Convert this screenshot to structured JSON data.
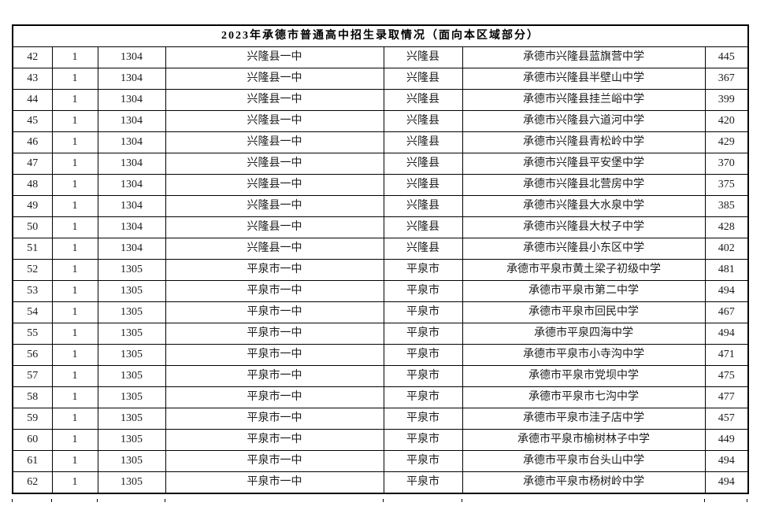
{
  "title": "2023年承德市普通高中招生录取情况（面向本区域部分）",
  "table": {
    "rows": [
      {
        "no": "42",
        "batch": "1",
        "code": "1304",
        "school": "兴隆县一中",
        "district": "兴隆县",
        "middle_school": "承德市兴隆县蓝旗营中学",
        "score": "445"
      },
      {
        "no": "43",
        "batch": "1",
        "code": "1304",
        "school": "兴隆县一中",
        "district": "兴隆县",
        "middle_school": "承德市兴隆县半壁山中学",
        "score": "367"
      },
      {
        "no": "44",
        "batch": "1",
        "code": "1304",
        "school": "兴隆县一中",
        "district": "兴隆县",
        "middle_school": "承德市兴隆县挂兰峪中学",
        "score": "399"
      },
      {
        "no": "45",
        "batch": "1",
        "code": "1304",
        "school": "兴隆县一中",
        "district": "兴隆县",
        "middle_school": "承德市兴隆县六道河中学",
        "score": "420"
      },
      {
        "no": "46",
        "batch": "1",
        "code": "1304",
        "school": "兴隆县一中",
        "district": "兴隆县",
        "middle_school": "承德市兴隆县青松岭中学",
        "score": "429"
      },
      {
        "no": "47",
        "batch": "1",
        "code": "1304",
        "school": "兴隆县一中",
        "district": "兴隆县",
        "middle_school": "承德市兴隆县平安堡中学",
        "score": "370"
      },
      {
        "no": "48",
        "batch": "1",
        "code": "1304",
        "school": "兴隆县一中",
        "district": "兴隆县",
        "middle_school": "承德市兴隆县北营房中学",
        "score": "375"
      },
      {
        "no": "49",
        "batch": "1",
        "code": "1304",
        "school": "兴隆县一中",
        "district": "兴隆县",
        "middle_school": "承德市兴隆县大水泉中学",
        "score": "385"
      },
      {
        "no": "50",
        "batch": "1",
        "code": "1304",
        "school": "兴隆县一中",
        "district": "兴隆县",
        "middle_school": "承德市兴隆县大杖子中学",
        "score": "428"
      },
      {
        "no": "51",
        "batch": "1",
        "code": "1304",
        "school": "兴隆县一中",
        "district": "兴隆县",
        "middle_school": "承德市兴隆县小东区中学",
        "score": "402"
      },
      {
        "no": "52",
        "batch": "1",
        "code": "1305",
        "school": "平泉市一中",
        "district": "平泉市",
        "middle_school": "承德市平泉市黄土梁子初级中学",
        "score": "481"
      },
      {
        "no": "53",
        "batch": "1",
        "code": "1305",
        "school": "平泉市一中",
        "district": "平泉市",
        "middle_school": "承德市平泉市第二中学",
        "score": "494"
      },
      {
        "no": "54",
        "batch": "1",
        "code": "1305",
        "school": "平泉市一中",
        "district": "平泉市",
        "middle_school": "承德市平泉市回民中学",
        "score": "467"
      },
      {
        "no": "55",
        "batch": "1",
        "code": "1305",
        "school": "平泉市一中",
        "district": "平泉市",
        "middle_school": "承德市平泉四海中学",
        "score": "494"
      },
      {
        "no": "56",
        "batch": "1",
        "code": "1305",
        "school": "平泉市一中",
        "district": "平泉市",
        "middle_school": "承德市平泉市小寺沟中学",
        "score": "471"
      },
      {
        "no": "57",
        "batch": "1",
        "code": "1305",
        "school": "平泉市一中",
        "district": "平泉市",
        "middle_school": "承德市平泉市党坝中学",
        "score": "475"
      },
      {
        "no": "58",
        "batch": "1",
        "code": "1305",
        "school": "平泉市一中",
        "district": "平泉市",
        "middle_school": "承德市平泉市七沟中学",
        "score": "477"
      },
      {
        "no": "59",
        "batch": "1",
        "code": "1305",
        "school": "平泉市一中",
        "district": "平泉市",
        "middle_school": "承德市平泉市洼子店中学",
        "score": "457"
      },
      {
        "no": "60",
        "batch": "1",
        "code": "1305",
        "school": "平泉市一中",
        "district": "平泉市",
        "middle_school": "承德市平泉市榆树林子中学",
        "score": "449"
      },
      {
        "no": "61",
        "batch": "1",
        "code": "1305",
        "school": "平泉市一中",
        "district": "平泉市",
        "middle_school": "承德市平泉市台头山中学",
        "score": "494"
      },
      {
        "no": "62",
        "batch": "1",
        "code": "1305",
        "school": "平泉市一中",
        "district": "平泉市",
        "middle_school": "承德市平泉市杨树岭中学",
        "score": "494"
      }
    ]
  }
}
